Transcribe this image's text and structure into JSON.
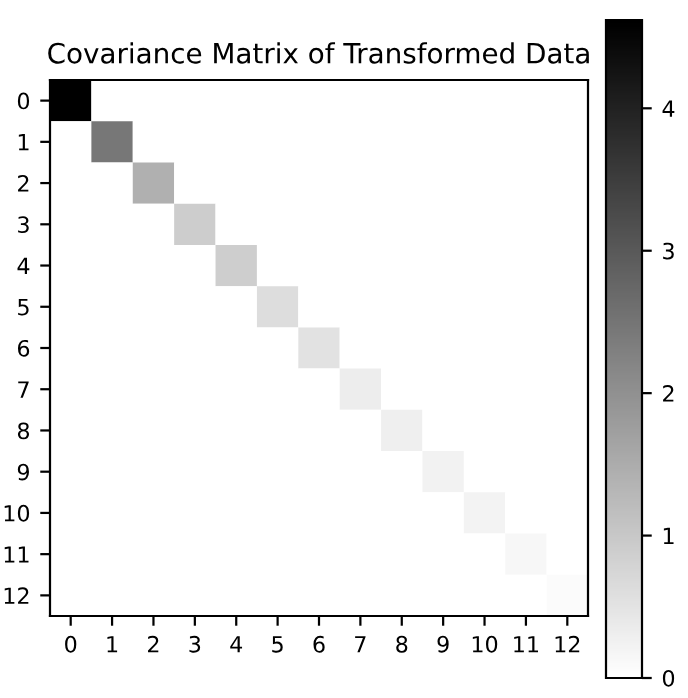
{
  "chart_data": {
    "type": "heatmap",
    "title": "Covariance Matrix of Transformed Data",
    "categories": [
      "0",
      "1",
      "2",
      "3",
      "4",
      "5",
      "6",
      "7",
      "8",
      "9",
      "10",
      "11",
      "12"
    ],
    "y_categories": [
      "0",
      "1",
      "2",
      "3",
      "4",
      "5",
      "6",
      "7",
      "8",
      "9",
      "10",
      "11",
      "12"
    ],
    "cells": [
      [
        4.62,
        0,
        0,
        0,
        0,
        0,
        0,
        0,
        0,
        0,
        0,
        0,
        0
      ],
      [
        0,
        2.46,
        0,
        0,
        0,
        0,
        0,
        0,
        0,
        0,
        0,
        0,
        0
      ],
      [
        0,
        0,
        1.43,
        0,
        0,
        0,
        0,
        0,
        0,
        0,
        0,
        0,
        0
      ],
      [
        0,
        0,
        0,
        0.92,
        0,
        0,
        0,
        0,
        0,
        0,
        0,
        0,
        0
      ],
      [
        0,
        0,
        0,
        0,
        0.9,
        0,
        0,
        0,
        0,
        0,
        0,
        0,
        0
      ],
      [
        0,
        0,
        0,
        0,
        0,
        0.63,
        0,
        0,
        0,
        0,
        0,
        0,
        0
      ],
      [
        0,
        0,
        0,
        0,
        0,
        0,
        0.53,
        0,
        0,
        0,
        0,
        0,
        0
      ],
      [
        0,
        0,
        0,
        0,
        0,
        0,
        0,
        0.34,
        0,
        0,
        0,
        0,
        0
      ],
      [
        0,
        0,
        0,
        0,
        0,
        0,
        0,
        0,
        0.29,
        0,
        0,
        0,
        0
      ],
      [
        0,
        0,
        0,
        0,
        0,
        0,
        0,
        0,
        0,
        0.24,
        0,
        0,
        0
      ],
      [
        0,
        0,
        0,
        0,
        0,
        0,
        0,
        0,
        0,
        0,
        0.22,
        0,
        0
      ],
      [
        0,
        0,
        0,
        0,
        0,
        0,
        0,
        0,
        0,
        0,
        0,
        0.16,
        0
      ],
      [
        0,
        0,
        0,
        0,
        0,
        0,
        0,
        0,
        0,
        0,
        0,
        0,
        0.09
      ]
    ],
    "clim": [
      0,
      4.62
    ],
    "cticks": [
      0,
      1,
      2,
      3,
      4
    ],
    "grid": false
  }
}
